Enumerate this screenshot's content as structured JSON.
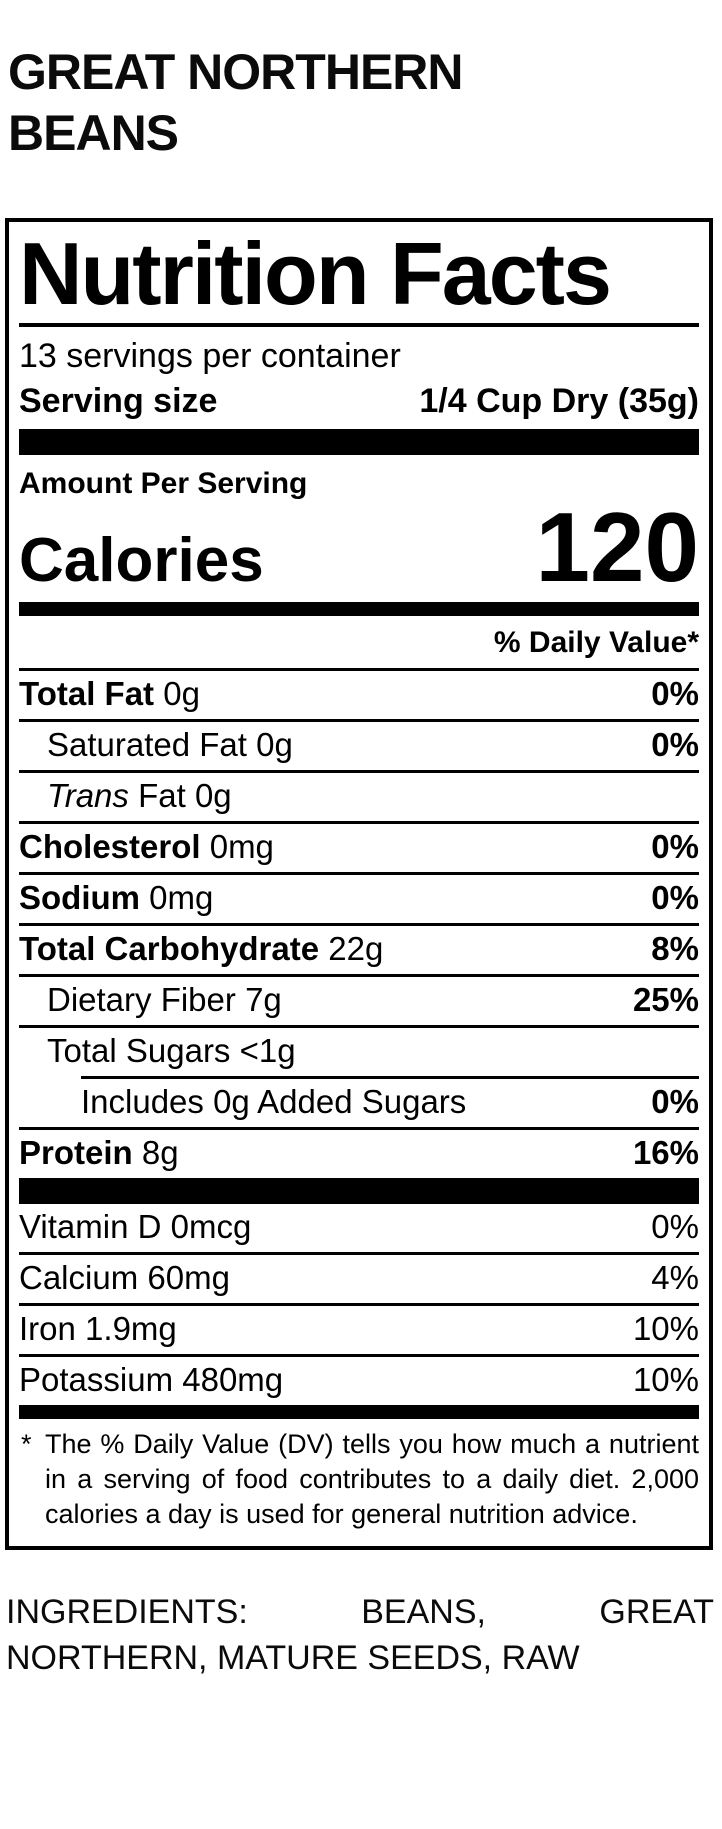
{
  "product": {
    "title": "GREAT NORTHERN BEANS"
  },
  "label": {
    "title": "Nutrition Facts",
    "servings_per_container": "13 servings per container",
    "serving_size": {
      "label": "Serving size",
      "value": "1/4 Cup Dry (35g)"
    },
    "amount_per_serving": "Amount Per Serving",
    "calories": {
      "label": "Calories",
      "value": "120"
    },
    "daily_value_header": "% Daily Value*",
    "rows": [
      {
        "bold": "Total Fat",
        "italic": "",
        "text": "",
        "amount": "0g",
        "dv": "0%",
        "dv_bold": true,
        "indent": 0,
        "rule_indent": false
      },
      {
        "bold": "",
        "italic": "",
        "text": "Saturated Fat",
        "amount": "0g",
        "dv": "0%",
        "dv_bold": true,
        "indent": 1,
        "rule_indent": false
      },
      {
        "bold": "",
        "italic": "Trans",
        "text": "Fat",
        "amount": "0g",
        "dv": "",
        "dv_bold": false,
        "indent": 1,
        "rule_indent": false
      },
      {
        "bold": "Cholesterol",
        "italic": "",
        "text": "",
        "amount": "0mg",
        "dv": "0%",
        "dv_bold": true,
        "indent": 0,
        "rule_indent": false
      },
      {
        "bold": "Sodium",
        "italic": "",
        "text": "",
        "amount": "0mg",
        "dv": "0%",
        "dv_bold": true,
        "indent": 0,
        "rule_indent": false
      },
      {
        "bold": "Total Carbohydrate",
        "italic": "",
        "text": "",
        "amount": "22g",
        "dv": "8%",
        "dv_bold": true,
        "indent": 0,
        "rule_indent": false
      },
      {
        "bold": "",
        "italic": "",
        "text": "Dietary Fiber",
        "amount": "7g",
        "dv": "25%",
        "dv_bold": true,
        "indent": 1,
        "rule_indent": false
      },
      {
        "bold": "",
        "italic": "",
        "text": "Total Sugars",
        "amount": "<1g",
        "dv": "",
        "dv_bold": false,
        "indent": 1,
        "rule_indent": false
      },
      {
        "bold": "",
        "italic": "",
        "text": "Includes 0g Added Sugars",
        "amount": "",
        "dv": "0%",
        "dv_bold": true,
        "indent": 2,
        "rule_indent": true
      },
      {
        "bold": "Protein",
        "italic": "",
        "text": "",
        "amount": "8g",
        "dv": "16%",
        "dv_bold": true,
        "indent": 0,
        "rule_indent": false
      }
    ],
    "vitamin_rows": [
      {
        "bold": "",
        "italic": "",
        "text": "Vitamin D",
        "amount": "0mcg",
        "dv": "0%",
        "dv_bold": false,
        "indent": 0,
        "rule_indent": false
      },
      {
        "bold": "",
        "italic": "",
        "text": "Calcium",
        "amount": "60mg",
        "dv": "4%",
        "dv_bold": false,
        "indent": 0,
        "rule_indent": false
      },
      {
        "bold": "",
        "italic": "",
        "text": "Iron",
        "amount": "1.9mg",
        "dv": "10%",
        "dv_bold": false,
        "indent": 0,
        "rule_indent": false
      },
      {
        "bold": "",
        "italic": "",
        "text": "Potassium",
        "amount": "480mg",
        "dv": "10%",
        "dv_bold": false,
        "indent": 0,
        "rule_indent": false
      }
    ],
    "footnote": {
      "marker": "*",
      "text": "The % Daily Value (DV) tells you how much a nutrient in a serving of food contributes to a daily diet. 2,000 calories a day is used for general nutrition advice."
    }
  },
  "ingredients": "INGREDIENTS: BEANS, GREAT NORTHERN, MATURE SEEDS, RAW",
  "colors": {
    "text": "#000000",
    "background": "#ffffff"
  }
}
